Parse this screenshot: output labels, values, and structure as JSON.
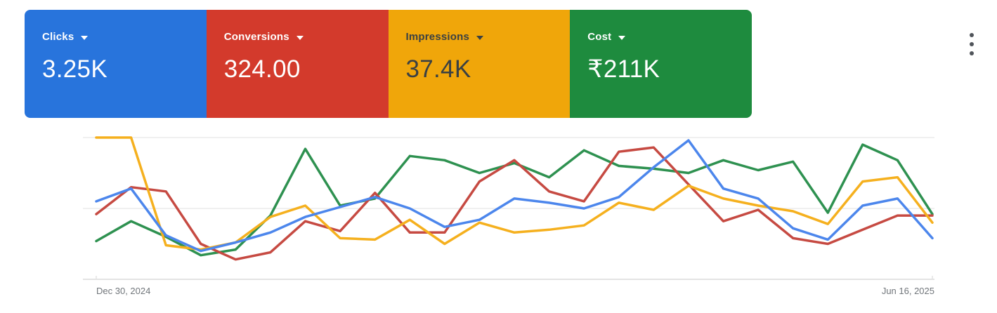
{
  "scorecards": [
    {
      "label": "Clicks",
      "value": "3.25K",
      "bg": "#2874DC",
      "text_color": "#ffffff"
    },
    {
      "label": "Conversions",
      "value": "324.00",
      "bg": "#D33A2C",
      "text_color": "#ffffff"
    },
    {
      "label": "Impressions",
      "value": "37.4K",
      "bg": "#F0A60A",
      "text_color": "#3A4043"
    },
    {
      "label": "Cost",
      "value": "₹211K",
      "bg": "#1E8B3E",
      "text_color": "#ffffff"
    }
  ],
  "menu": {
    "icon": "kebab-menu-icon"
  },
  "chart_data": {
    "type": "line",
    "title": "",
    "x_points": 25,
    "x_interval": "weekly",
    "x_axis_labels": [
      "Dec 30, 2024",
      "Jun 16, 2025"
    ],
    "y_axis": {
      "min": 0,
      "max": 100,
      "units": "percent-of-plot-height",
      "gridlines": [
        0,
        50,
        100
      ],
      "tick_labels_visible": false
    },
    "grid": {
      "color": "#ECECEC",
      "axis_color": "#E3E3E3"
    },
    "legend_position": "scorecards-above",
    "series": [
      {
        "name": "Cost",
        "color": "#2E9150",
        "values": [
          27,
          41,
          30,
          17,
          21,
          45,
          92,
          52,
          57,
          87,
          84,
          75,
          82,
          72,
          91,
          80,
          78,
          75,
          84,
          77,
          83,
          47,
          95,
          84,
          46
        ]
      },
      {
        "name": "Conversions",
        "color": "#C64A42",
        "values": [
          46,
          65,
          62,
          25,
          14,
          19,
          41,
          34,
          61,
          33,
          33,
          69,
          84,
          62,
          55,
          90,
          93,
          67,
          41,
          49,
          29,
          25,
          35,
          45,
          45
        ]
      },
      {
        "name": "Impressions",
        "color": "#F5B01E",
        "values": [
          100,
          100,
          24,
          21,
          26,
          44,
          52,
          29,
          28,
          42,
          25,
          40,
          33,
          35,
          38,
          54,
          49,
          66,
          57,
          52,
          48,
          39,
          69,
          72,
          40
        ]
      },
      {
        "name": "Clicks",
        "color": "#4C86EC",
        "values": [
          55,
          64,
          31,
          20,
          26,
          33,
          44,
          51,
          58,
          50,
          37,
          42,
          57,
          54,
          50,
          58,
          79,
          98,
          64,
          57,
          36,
          28,
          52,
          57,
          29
        ]
      }
    ]
  }
}
